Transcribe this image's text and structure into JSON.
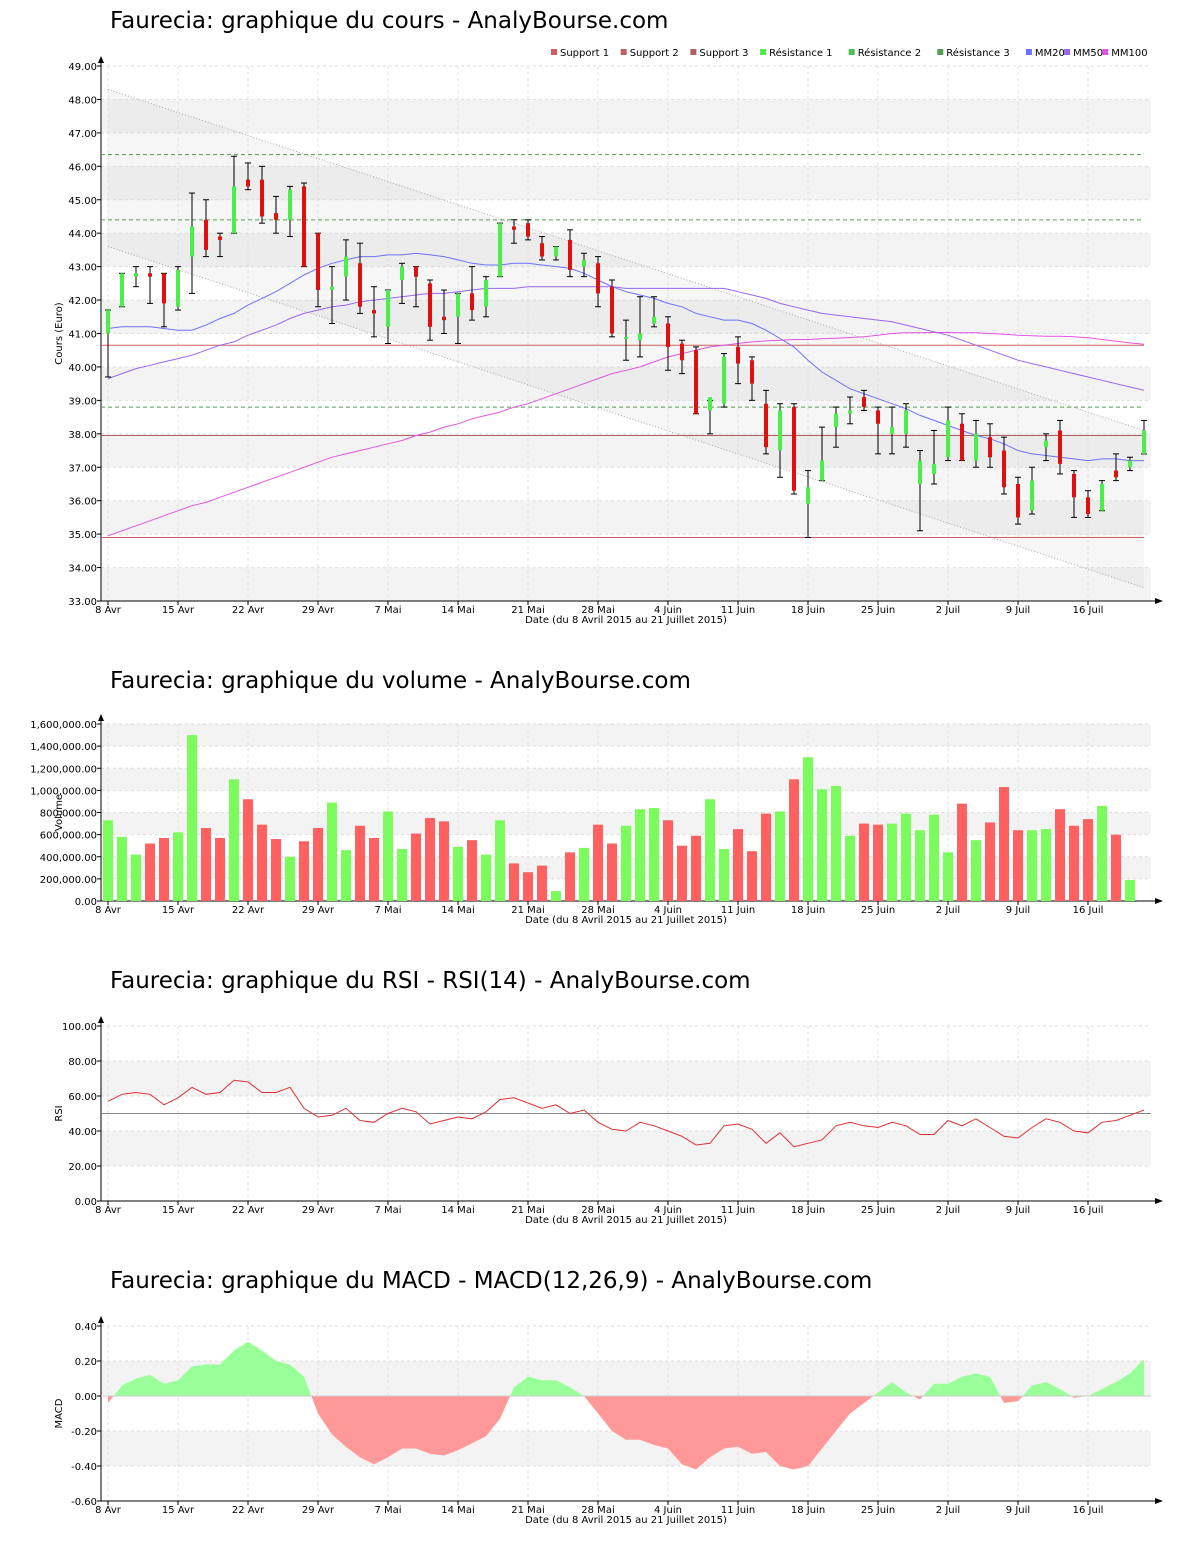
{
  "page": {
    "width": 1200,
    "height": 1550
  },
  "colors": {
    "up": "#4cee4c",
    "down": "#e01010",
    "vol_up": "#7cfc5c",
    "vol_down": "#ff6060",
    "mm20": "#7070ff",
    "mm50": "#9966ee",
    "mm100": "#e055e0",
    "support": "#d06060",
    "resistance": "#50a050",
    "rsi": "#e03030",
    "macd_pos": "#99ff99",
    "macd_neg": "#ff9999"
  },
  "x_axis": {
    "ticks": [
      "8 Avr",
      "15 Avr",
      "22 Avr",
      "29 Avr",
      "7 Mai",
      "14 Mai",
      "21 Mai",
      "28 Mai",
      "4 Juin",
      "11 Juin",
      "18 Juin",
      "25 Juin",
      "2 Juil",
      "9 Juil",
      "16 Juil"
    ],
    "tick_index": [
      0,
      5,
      10,
      15,
      20,
      25,
      30,
      35,
      40,
      45,
      50,
      55,
      60,
      65,
      70
    ],
    "label": "Date (du 8 Avril 2015 au 21 Juillet 2015)"
  },
  "chart_data": [
    {
      "type": "candlestick",
      "title": "Faurecia: graphique du cours - AnalyBourse.com",
      "ylabel": "Cours (Euro)",
      "ylim": [
        33,
        49
      ],
      "yticks": [
        "33.00",
        "34.00",
        "35.00",
        "36.00",
        "37.00",
        "38.00",
        "39.00",
        "40.00",
        "41.00",
        "42.00",
        "43.00",
        "44.00",
        "45.00",
        "46.00",
        "47.00",
        "48.00",
        "49.00"
      ],
      "legend": [
        "Support 1",
        "Support 2",
        "Support 3",
        "Résistance 1",
        "Résistance 2",
        "Résistance 3",
        "MM20",
        "MM50",
        "MM100"
      ],
      "support_levels": [
        40.65,
        37.95,
        34.9
      ],
      "resistance_levels": [
        38.8,
        44.4,
        46.35
      ],
      "trend_channel": {
        "upper": [
          48.3,
          38.1
        ],
        "lower": [
          43.6,
          33.4
        ]
      },
      "ohlc": [
        [
          41.0,
          41.7,
          39.7,
          41.7
        ],
        [
          41.8,
          42.8,
          41.8,
          42.8
        ],
        [
          42.7,
          43.0,
          42.4,
          42.8
        ],
        [
          42.8,
          43.0,
          41.9,
          42.7
        ],
        [
          42.8,
          42.8,
          41.2,
          41.9
        ],
        [
          41.8,
          43.0,
          41.7,
          42.9
        ],
        [
          43.3,
          45.2,
          42.2,
          44.2
        ],
        [
          44.4,
          45.0,
          43.3,
          43.5
        ],
        [
          43.9,
          44.0,
          43.3,
          43.8
        ],
        [
          44.0,
          46.3,
          44.0,
          45.4
        ],
        [
          45.6,
          46.1,
          45.3,
          45.4
        ],
        [
          45.6,
          46.0,
          44.3,
          44.5
        ],
        [
          44.6,
          45.1,
          44.0,
          44.4
        ],
        [
          44.4,
          45.4,
          43.9,
          45.3
        ],
        [
          45.4,
          45.5,
          43.0,
          43.0
        ],
        [
          44.0,
          44.0,
          41.8,
          42.3
        ],
        [
          42.3,
          43.0,
          41.3,
          42.4
        ],
        [
          42.7,
          43.8,
          42.0,
          43.3
        ],
        [
          43.1,
          43.7,
          41.6,
          41.8
        ],
        [
          41.7,
          42.4,
          40.9,
          41.6
        ],
        [
          41.2,
          42.3,
          40.7,
          42.3
        ],
        [
          42.6,
          43.1,
          41.9,
          43.0
        ],
        [
          43.0,
          43.0,
          41.8,
          42.7
        ],
        [
          42.5,
          42.6,
          40.8,
          41.2
        ],
        [
          41.5,
          42.3,
          41.0,
          41.4
        ],
        [
          41.5,
          42.2,
          40.7,
          42.2
        ],
        [
          42.2,
          43.0,
          41.4,
          41.7
        ],
        [
          41.8,
          42.7,
          41.5,
          42.6
        ],
        [
          42.7,
          44.3,
          42.7,
          44.3
        ],
        [
          44.2,
          44.4,
          43.7,
          44.1
        ],
        [
          44.3,
          44.4,
          43.8,
          43.9
        ],
        [
          43.7,
          43.9,
          43.2,
          43.3
        ],
        [
          43.3,
          43.6,
          43.2,
          43.6
        ],
        [
          43.8,
          44.1,
          42.7,
          42.9
        ],
        [
          43.0,
          43.4,
          42.7,
          43.2
        ],
        [
          43.1,
          43.3,
          41.8,
          42.2
        ],
        [
          42.4,
          42.6,
          40.9,
          41.0
        ],
        [
          40.9,
          41.4,
          40.2,
          40.9
        ],
        [
          40.8,
          42.1,
          40.3,
          41.0
        ],
        [
          41.3,
          42.1,
          41.2,
          41.5
        ],
        [
          41.3,
          41.5,
          39.9,
          40.6
        ],
        [
          40.7,
          40.8,
          39.8,
          40.2
        ],
        [
          40.5,
          40.6,
          38.6,
          38.6
        ],
        [
          38.7,
          39.0,
          38.0,
          39.1
        ],
        [
          38.9,
          40.4,
          38.8,
          40.3
        ],
        [
          40.6,
          40.9,
          39.5,
          40.1
        ],
        [
          40.2,
          40.3,
          39.0,
          39.5
        ],
        [
          38.9,
          39.3,
          37.4,
          37.6
        ],
        [
          37.5,
          38.9,
          36.7,
          38.7
        ],
        [
          38.8,
          38.9,
          36.2,
          36.3
        ],
        [
          35.9,
          36.9,
          34.9,
          36.4
        ],
        [
          36.6,
          38.2,
          36.6,
          37.2
        ],
        [
          38.2,
          38.8,
          37.6,
          38.6
        ],
        [
          38.6,
          39.1,
          38.3,
          38.7
        ],
        [
          39.1,
          39.3,
          38.7,
          38.8
        ],
        [
          38.7,
          38.8,
          37.4,
          38.3
        ],
        [
          38.0,
          38.8,
          37.4,
          38.2
        ],
        [
          38.0,
          38.9,
          37.6,
          38.7
        ],
        [
          36.5,
          37.5,
          35.1,
          37.2
        ],
        [
          36.8,
          38.1,
          36.5,
          37.1
        ],
        [
          37.3,
          38.8,
          37.2,
          38.4
        ],
        [
          38.3,
          38.6,
          37.2,
          37.2
        ],
        [
          37.2,
          38.4,
          37.0,
          38.0
        ],
        [
          37.9,
          38.3,
          37.0,
          37.3
        ],
        [
          37.5,
          37.9,
          36.2,
          36.4
        ],
        [
          36.5,
          36.7,
          35.3,
          35.5
        ],
        [
          35.7,
          37.0,
          35.6,
          36.6
        ],
        [
          37.6,
          38.0,
          37.2,
          37.8
        ],
        [
          38.1,
          38.4,
          36.8,
          37.1
        ],
        [
          36.8,
          36.9,
          35.5,
          36.1
        ],
        [
          36.1,
          36.3,
          35.5,
          35.6
        ],
        [
          35.7,
          36.6,
          35.7,
          36.5
        ],
        [
          36.9,
          37.4,
          36.6,
          36.7
        ],
        [
          37.0,
          37.3,
          36.9,
          37.2
        ],
        [
          37.4,
          38.4,
          37.4,
          38.1
        ]
      ],
      "mm20": [
        41.15,
        41.2,
        41.2,
        41.2,
        41.15,
        41.1,
        41.1,
        41.25,
        41.45,
        41.6,
        41.85,
        42.05,
        42.25,
        42.5,
        42.75,
        42.95,
        43.1,
        43.2,
        43.3,
        43.3,
        43.35,
        43.35,
        43.4,
        43.35,
        43.3,
        43.2,
        43.1,
        43.05,
        43.05,
        43.1,
        43.1,
        43.05,
        43.0,
        42.95,
        42.8,
        42.6,
        42.4,
        42.25,
        42.15,
        42.05,
        41.9,
        41.8,
        41.6,
        41.5,
        41.4,
        41.4,
        41.3,
        41.1,
        40.85,
        40.6,
        40.2,
        39.85,
        39.6,
        39.35,
        39.2,
        39.05,
        38.9,
        38.75,
        38.55,
        38.4,
        38.25,
        38.1,
        37.95,
        37.85,
        37.7,
        37.5,
        37.4,
        37.35,
        37.3,
        37.25,
        37.2,
        37.25,
        37.25,
        37.2,
        37.2
      ],
      "mm50": [
        39.65,
        39.8,
        39.95,
        40.05,
        40.15,
        40.25,
        40.35,
        40.5,
        40.65,
        40.75,
        40.95,
        41.1,
        41.25,
        41.45,
        41.6,
        41.7,
        41.8,
        41.85,
        41.95,
        42.0,
        42.05,
        42.1,
        42.15,
        42.2,
        42.2,
        42.25,
        42.3,
        42.35,
        42.35,
        42.35,
        42.4,
        42.4,
        42.4,
        42.4,
        42.4,
        42.4,
        42.4,
        42.35,
        42.35,
        42.35,
        42.35,
        42.35,
        42.35,
        42.35,
        42.35,
        42.25,
        42.15,
        42.05,
        41.9,
        41.8,
        41.7,
        41.6,
        41.55,
        41.5,
        41.45,
        41.4,
        41.35,
        41.25,
        41.15,
        41.05,
        40.95,
        40.8,
        40.65,
        40.5,
        40.35,
        40.2,
        40.1,
        40.0,
        39.9,
        39.8,
        39.7,
        39.6,
        39.5,
        39.4,
        39.3
      ],
      "mm100": [
        34.95,
        35.1,
        35.25,
        35.4,
        35.55,
        35.7,
        35.85,
        35.95,
        36.1,
        36.25,
        36.4,
        36.55,
        36.7,
        36.85,
        37.0,
        37.15,
        37.3,
        37.4,
        37.5,
        37.6,
        37.7,
        37.8,
        37.95,
        38.05,
        38.2,
        38.3,
        38.45,
        38.55,
        38.65,
        38.8,
        38.9,
        39.05,
        39.2,
        39.35,
        39.5,
        39.65,
        39.8,
        39.9,
        40.0,
        40.15,
        40.3,
        40.4,
        40.5,
        40.6,
        40.65,
        40.7,
        40.75,
        40.78,
        40.8,
        40.82,
        40.82,
        40.84,
        40.86,
        40.88,
        40.9,
        40.95,
        41.0,
        41.02,
        41.02,
        41.03,
        41.03,
        41.02,
        41.02,
        41.0,
        40.98,
        40.95,
        40.93,
        40.92,
        40.92,
        40.9,
        40.87,
        40.82,
        40.77,
        40.72,
        40.68
      ]
    },
    {
      "type": "bar",
      "title": "Faurecia: graphique du volume - AnalyBourse.com",
      "ylabel": "Volume",
      "ylim": [
        0,
        1600000
      ],
      "yticks": [
        "0.00",
        "200,000.00",
        "400,000.00",
        "600,000.00",
        "800,000.00",
        "1,000,000.00",
        "1,200,000.00",
        "1,400,000.00",
        "1,600,000.00"
      ],
      "values": [
        730000,
        580000,
        420000,
        520000,
        570000,
        620000,
        1500000,
        660000,
        570000,
        1100000,
        920000,
        690000,
        560000,
        400000,
        540000,
        660000,
        890000,
        460000,
        680000,
        570000,
        810000,
        470000,
        610000,
        750000,
        720000,
        490000,
        550000,
        420000,
        730000,
        340000,
        260000,
        320000,
        90000,
        440000,
        480000,
        690000,
        520000,
        680000,
        830000,
        840000,
        730000,
        500000,
        590000,
        920000,
        470000,
        650000,
        450000,
        790000,
        810000,
        1100000,
        1300000,
        1010000,
        1040000,
        590000,
        700000,
        690000,
        700000,
        790000,
        640000,
        780000,
        440000,
        880000,
        550000,
        710000,
        1030000,
        640000,
        640000,
        650000,
        830000,
        680000,
        740000,
        860000,
        600000,
        190000
      ]
    },
    {
      "type": "line",
      "title": "Faurecia: graphique du RSI - RSI(14) - AnalyBourse.com",
      "ylabel": "RSI",
      "ylim": [
        0,
        100
      ],
      "yticks": [
        "0.00",
        "20.00",
        "40.00",
        "60.00",
        "80.00",
        "100.00"
      ],
      "reference_line": 50,
      "values": [
        57,
        61,
        62,
        61,
        55,
        59,
        65,
        61,
        62,
        69,
        68,
        62,
        62,
        65,
        53,
        48,
        49,
        53,
        46,
        45,
        50,
        53,
        51,
        44,
        46,
        48,
        47,
        51,
        58,
        59,
        56,
        53,
        55,
        50,
        52,
        45,
        41,
        40,
        45,
        43,
        40,
        37,
        32,
        33,
        43,
        44,
        41,
        33,
        39,
        31,
        33,
        35,
        43,
        45,
        43,
        42,
        45,
        43,
        38,
        38,
        46,
        43,
        47,
        42,
        37,
        36,
        42,
        47,
        45,
        40,
        39,
        45,
        46,
        49,
        52
      ]
    },
    {
      "type": "area",
      "title": "Faurecia: graphique du MACD - MACD(12,26,9) - AnalyBourse.com",
      "ylabel": "MACD",
      "ylim": [
        -0.6,
        0.4
      ],
      "yticks": [
        "-0.60",
        "-0.40",
        "-0.20",
        "0.00",
        "0.20",
        "0.40"
      ],
      "values": [
        -0.04,
        0.06,
        0.1,
        0.12,
        0.07,
        0.09,
        0.17,
        0.18,
        0.18,
        0.26,
        0.31,
        0.26,
        0.2,
        0.18,
        0.11,
        -0.1,
        -0.22,
        -0.29,
        -0.35,
        -0.39,
        -0.35,
        -0.3,
        -0.3,
        -0.33,
        -0.34,
        -0.31,
        -0.27,
        -0.23,
        -0.13,
        0.05,
        0.11,
        0.09,
        0.09,
        0.05,
        0.0,
        -0.1,
        -0.2,
        -0.25,
        -0.25,
        -0.28,
        -0.3,
        -0.39,
        -0.42,
        -0.35,
        -0.3,
        -0.29,
        -0.33,
        -0.32,
        -0.4,
        -0.42,
        -0.4,
        -0.3,
        -0.2,
        -0.1,
        -0.04,
        0.02,
        0.08,
        0.02,
        -0.02,
        0.07,
        0.07,
        0.11,
        0.13,
        0.11,
        -0.04,
        -0.03,
        0.06,
        0.08,
        0.04,
        -0.01,
        0.0,
        0.04,
        0.08,
        0.13,
        0.21
      ]
    }
  ]
}
